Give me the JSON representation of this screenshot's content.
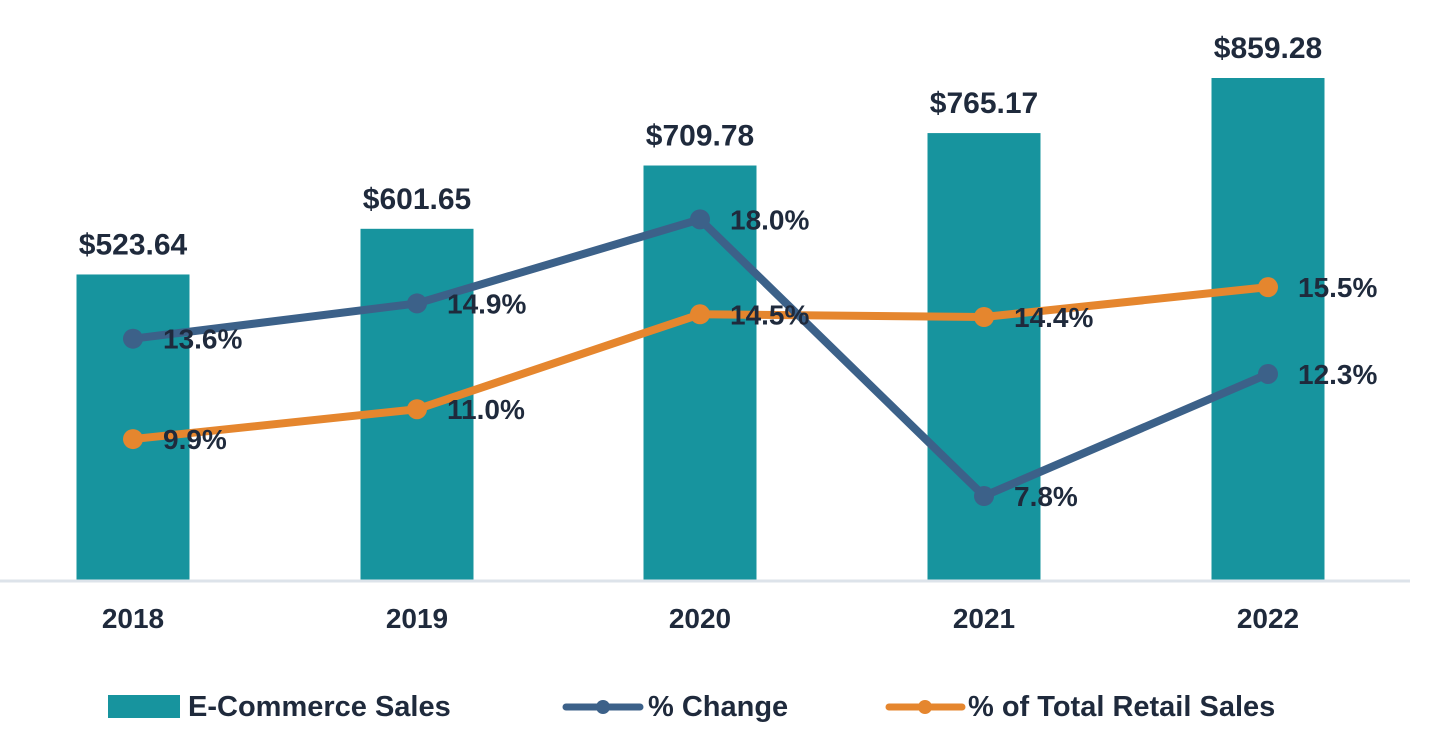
{
  "chart_data": {
    "type": "bar",
    "categories": [
      "2018",
      "2019",
      "2020",
      "2021",
      "2022"
    ],
    "bar_series": {
      "name": "E-Commerce Sales",
      "values": [
        523.64,
        601.65,
        709.78,
        765.17,
        859.28
      ],
      "labels": [
        "$523.64",
        "$601.65",
        "$709.78",
        "$765.17",
        "$859.28"
      ],
      "color": "#17949e"
    },
    "line_series": [
      {
        "name": "% Change",
        "values": [
          13.6,
          14.9,
          18.0,
          7.8,
          12.3
        ],
        "labels": [
          "13.6%",
          "14.9%",
          "18.0%",
          "7.8%",
          "12.3%"
        ],
        "color": "#3c6189"
      },
      {
        "name": "% of Total Retail Sales",
        "values": [
          9.9,
          11.0,
          14.5,
          14.4,
          15.5
        ],
        "labels": [
          "9.9%",
          "11.0%",
          "14.5%",
          "14.4%",
          "15.5%"
        ],
        "color": "#e5862e"
      }
    ],
    "bar_axis_range": [
      0,
      859.28
    ],
    "line_axis_range": [
      5.0,
      24.5
    ],
    "grid": false,
    "legend_position": "bottom"
  },
  "legend": {
    "bar_label": "E-Commerce Sales",
    "change_label": "% Change",
    "share_label": "% of Total Retail Sales"
  },
  "colors": {
    "text": "#1f2a3c",
    "baseline": "#dde3ea"
  }
}
